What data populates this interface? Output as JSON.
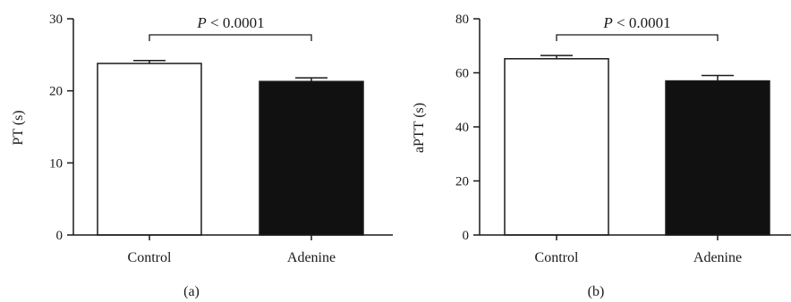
{
  "chart_data": [
    {
      "type": "bar",
      "panel_label": "(a)",
      "title": "",
      "xlabel": "",
      "ylabel": "PT (s)",
      "categories": [
        "Control",
        "Adenine"
      ],
      "values": [
        23.8,
        21.3
      ],
      "errors": [
        0.4,
        0.5
      ],
      "bar_colors": [
        "#ffffff",
        "#111111"
      ],
      "ylim": [
        0,
        30
      ],
      "yticks": [
        "0",
        "10",
        "20",
        "30"
      ],
      "annotation": {
        "p_symbol": "P",
        "p_rest": " < 0.0001"
      },
      "grid": false
    },
    {
      "type": "bar",
      "panel_label": "(b)",
      "title": "",
      "xlabel": "",
      "ylabel": "aPTT (s)",
      "categories": [
        "Control",
        "Adenine"
      ],
      "values": [
        65.2,
        57.0
      ],
      "errors": [
        1.2,
        2.0
      ],
      "bar_colors": [
        "#ffffff",
        "#111111"
      ],
      "ylim": [
        0,
        80
      ],
      "yticks": [
        "0",
        "20",
        "40",
        "60",
        "80"
      ],
      "annotation": {
        "p_symbol": "P",
        "p_rest": " < 0.0001"
      },
      "grid": false
    }
  ]
}
